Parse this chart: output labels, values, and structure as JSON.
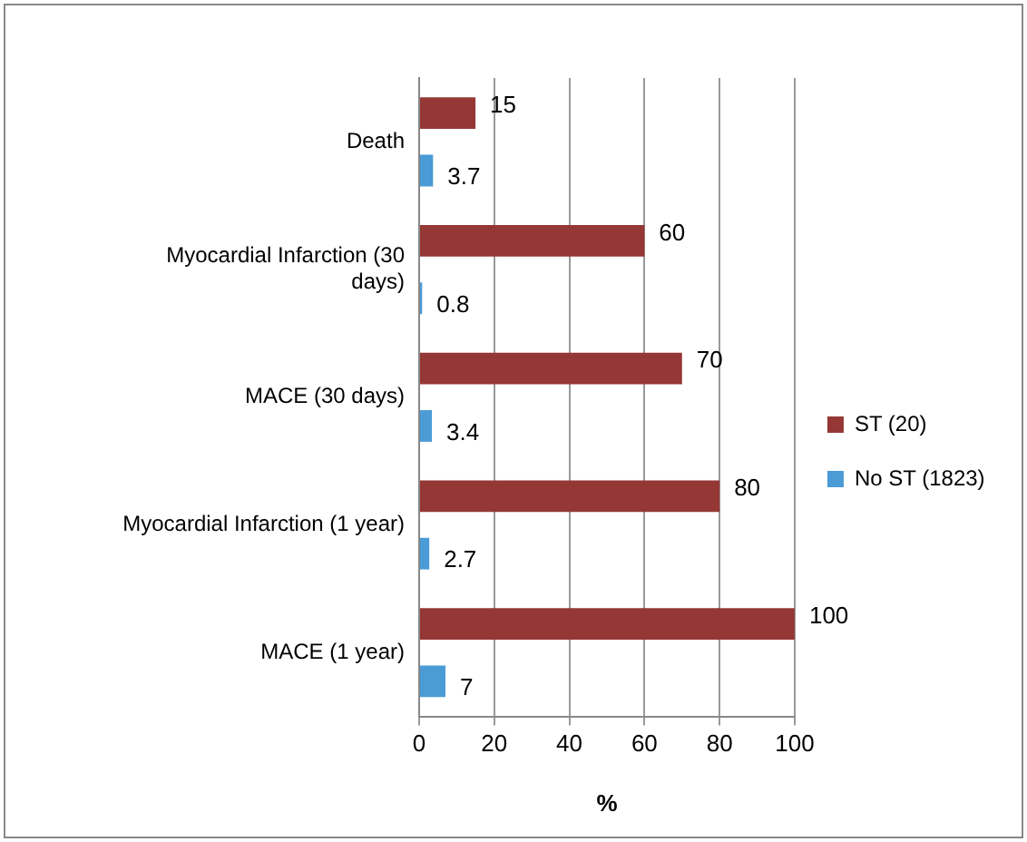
{
  "chart_data": {
    "type": "bar",
    "orientation": "horizontal",
    "xlabel": "%",
    "categories": [
      "Death",
      "Myocardial Infarction (30 days)",
      "MACE (30 days)",
      "Myocardial Infarction (1 year)",
      "MACE (1 year)"
    ],
    "series": [
      {
        "name": "ST (20)",
        "color": "#953735",
        "values": [
          15,
          60,
          70,
          80,
          100
        ]
      },
      {
        "name": "No ST (1823)",
        "color": "#4a9bd6",
        "values": [
          3.7,
          0.8,
          3.4,
          2.7,
          7
        ]
      }
    ],
    "xlim": [
      0,
      100
    ],
    "xticks": [
      0,
      20,
      40,
      60,
      80,
      100
    ],
    "grid": "x",
    "legend": "right",
    "data_labels": true
  }
}
